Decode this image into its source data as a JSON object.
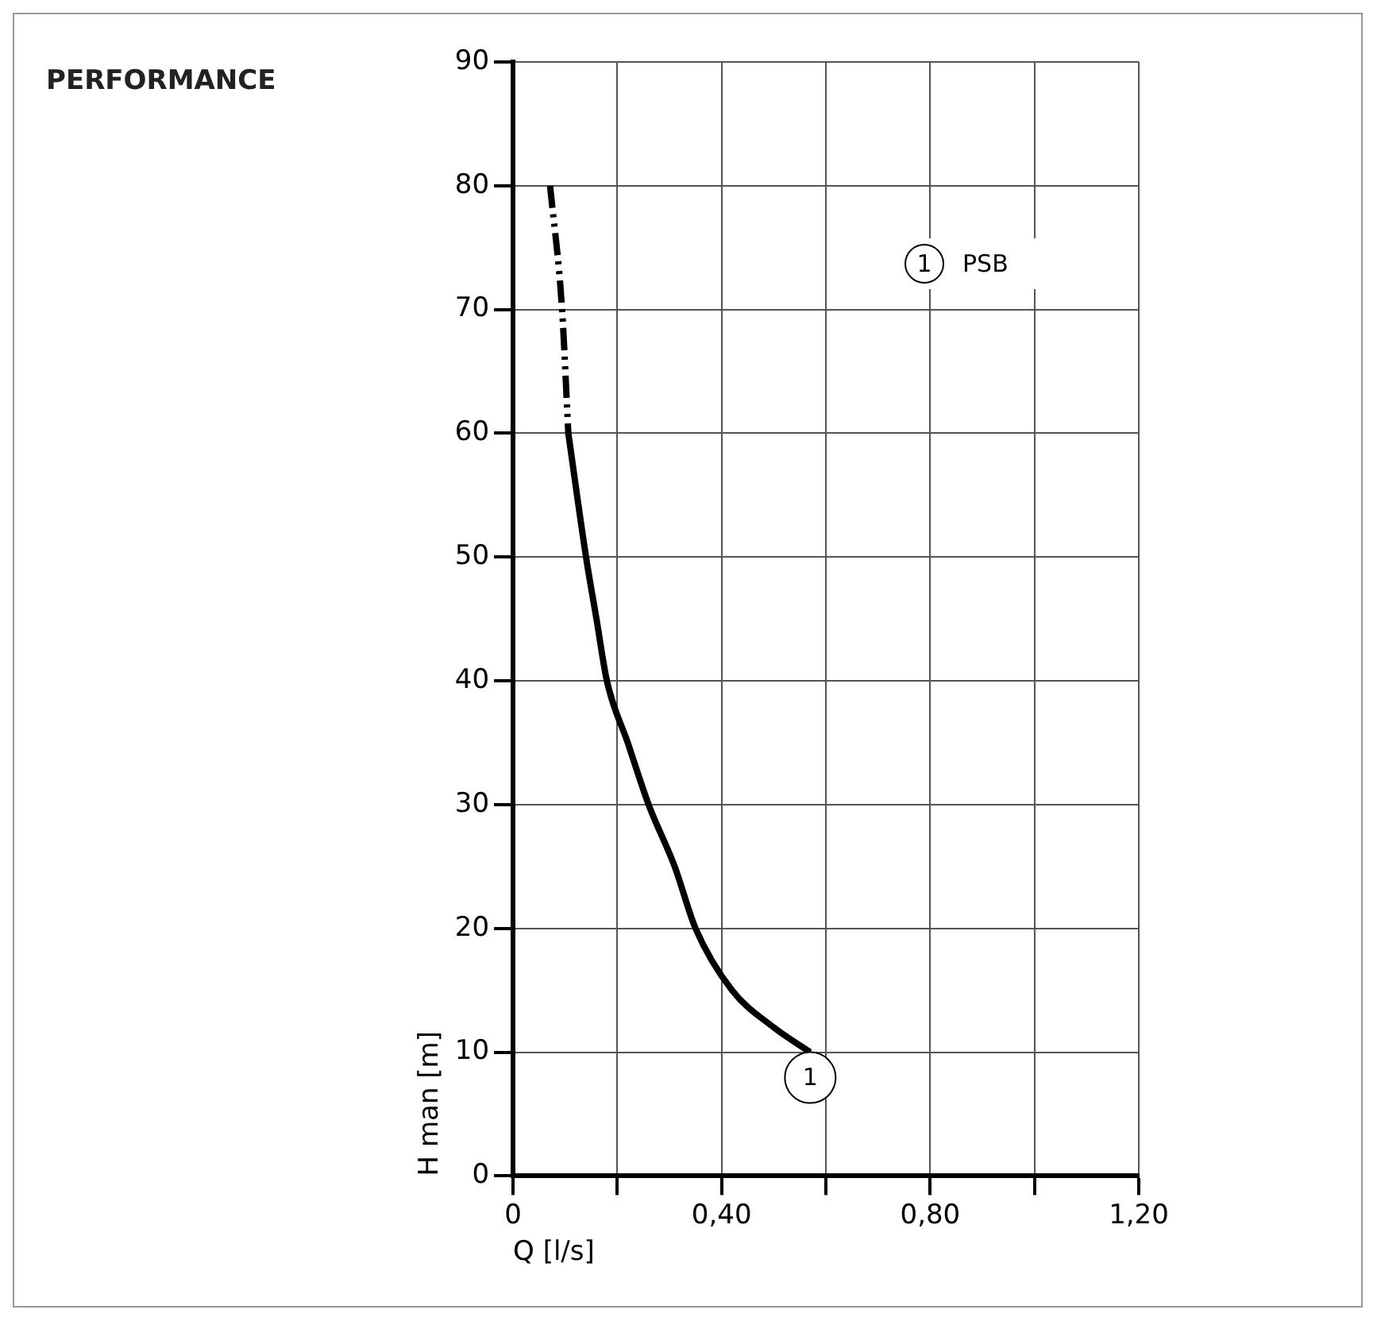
{
  "chart_data": {
    "type": "line",
    "title": "PERFORMANCE",
    "xlabel": "Q [l/s]",
    "ylabel": "H man [m]",
    "xlim": [
      0,
      1.2
    ],
    "xticks": [
      0,
      {
        "value": 0.2,
        "label": null
      },
      {
        "value": 0.4,
        "label": "0,40"
      },
      {
        "value": 0.6,
        "label": null
      },
      {
        "value": 0.8,
        "label": "0,80"
      },
      {
        "value": 1.0,
        "label": null
      },
      {
        "value": 1.2,
        "label": "1,20"
      }
    ],
    "ylim": [
      0,
      90
    ],
    "yticks": [
      0,
      10,
      20,
      30,
      40,
      50,
      60,
      70,
      80,
      90
    ],
    "grid": true,
    "legend": "top right",
    "marker": "none",
    "series": [
      {
        "color": "#000000",
        "line_style": "dashed",
        "x": [
          0.071,
          0.094,
          0.106
        ],
        "values": [
          80,
          70,
          60
        ]
      },
      {
        "name": "PSB",
        "color": "#000000",
        "line_style": "solid",
        "x": [
          0.106,
          0.14,
          0.16,
          0.18,
          0.22,
          0.26,
          0.31,
          0.35,
          0.42,
          0.5,
          0.57
        ],
        "values": [
          60,
          50,
          45,
          40,
          35,
          30,
          25,
          20,
          15,
          12,
          10
        ]
      }
    ],
    "annotations": [
      {
        "text": "1",
        "x": 0.57,
        "y": 10
      }
    ]
  }
}
